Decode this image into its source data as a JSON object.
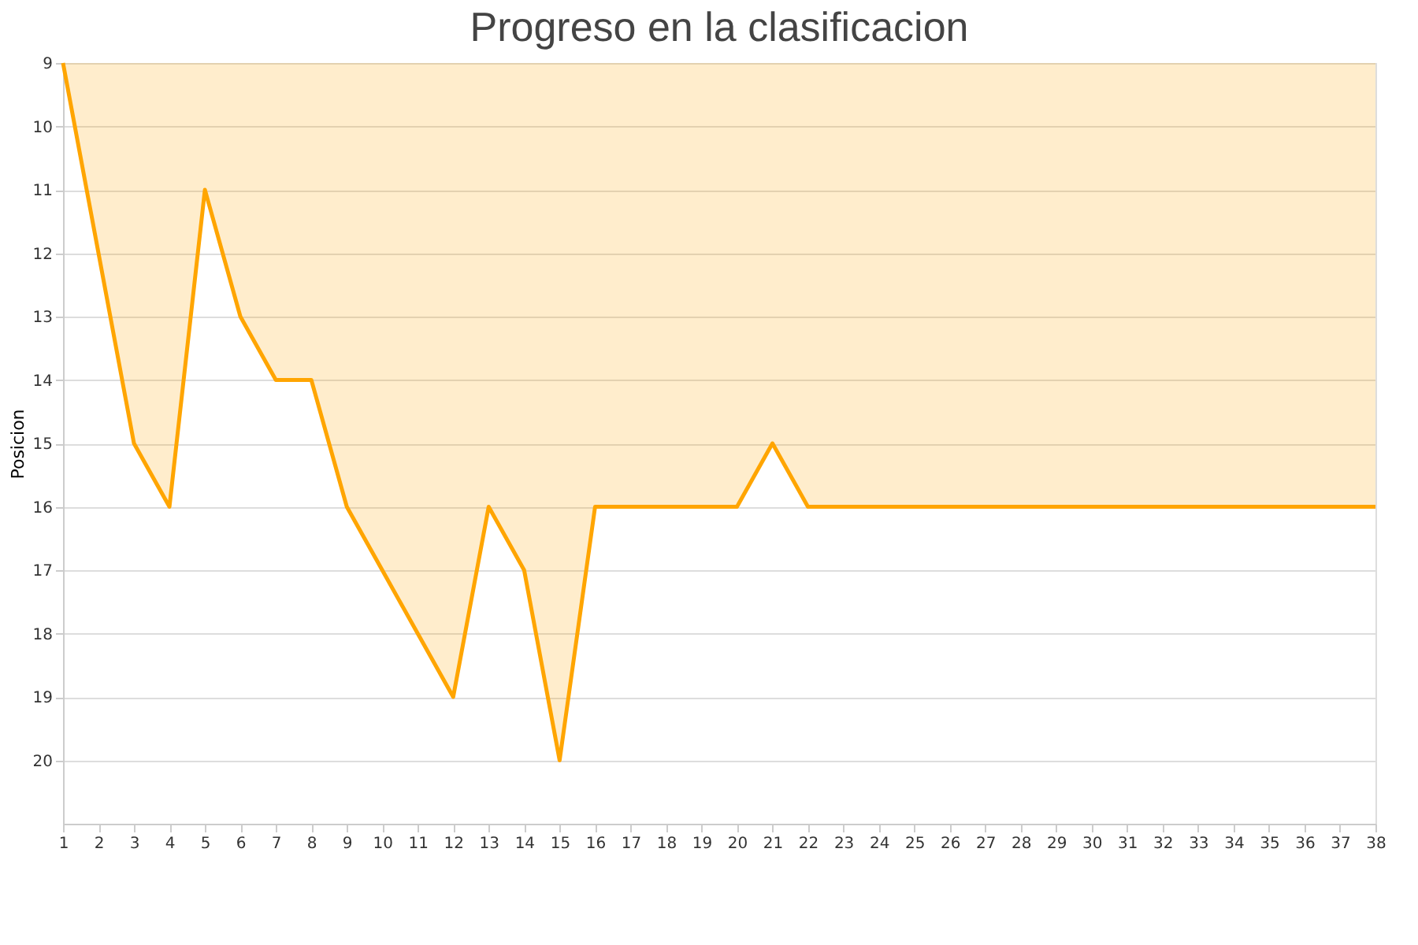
{
  "chart_data": {
    "type": "area",
    "title": "Progreso en la clasificacion",
    "ylabel": "Posicion",
    "x": [
      1,
      2,
      3,
      4,
      5,
      6,
      7,
      8,
      9,
      10,
      11,
      12,
      13,
      14,
      15,
      16,
      17,
      18,
      19,
      20,
      21,
      22,
      23,
      24,
      25,
      26,
      27,
      28,
      29,
      30,
      31,
      32,
      33,
      34,
      35,
      36,
      37,
      38
    ],
    "series": [
      {
        "color": "#ffa500",
        "values": [
          9,
          12,
          15,
          16,
          11,
          13,
          14,
          14,
          16,
          17,
          18,
          19,
          16,
          17,
          20,
          16,
          16,
          16,
          16,
          16,
          15,
          16,
          16,
          16,
          16,
          16,
          16,
          16,
          16,
          16,
          16,
          16,
          16,
          16,
          16,
          16,
          16,
          16
        ]
      }
    ],
    "xlim": [
      1,
      38
    ],
    "xticks": [
      1,
      2,
      3,
      4,
      5,
      6,
      7,
      8,
      9,
      10,
      11,
      12,
      13,
      14,
      15,
      16,
      17,
      18,
      19,
      20,
      21,
      22,
      23,
      24,
      25,
      26,
      27,
      28,
      29,
      30,
      31,
      32,
      33,
      34,
      35,
      36,
      37,
      38
    ],
    "ylim": [
      21,
      9
    ],
    "yticks": [
      9,
      10,
      11,
      12,
      13,
      14,
      15,
      16,
      17,
      18,
      19,
      20
    ],
    "grid": "y"
  }
}
